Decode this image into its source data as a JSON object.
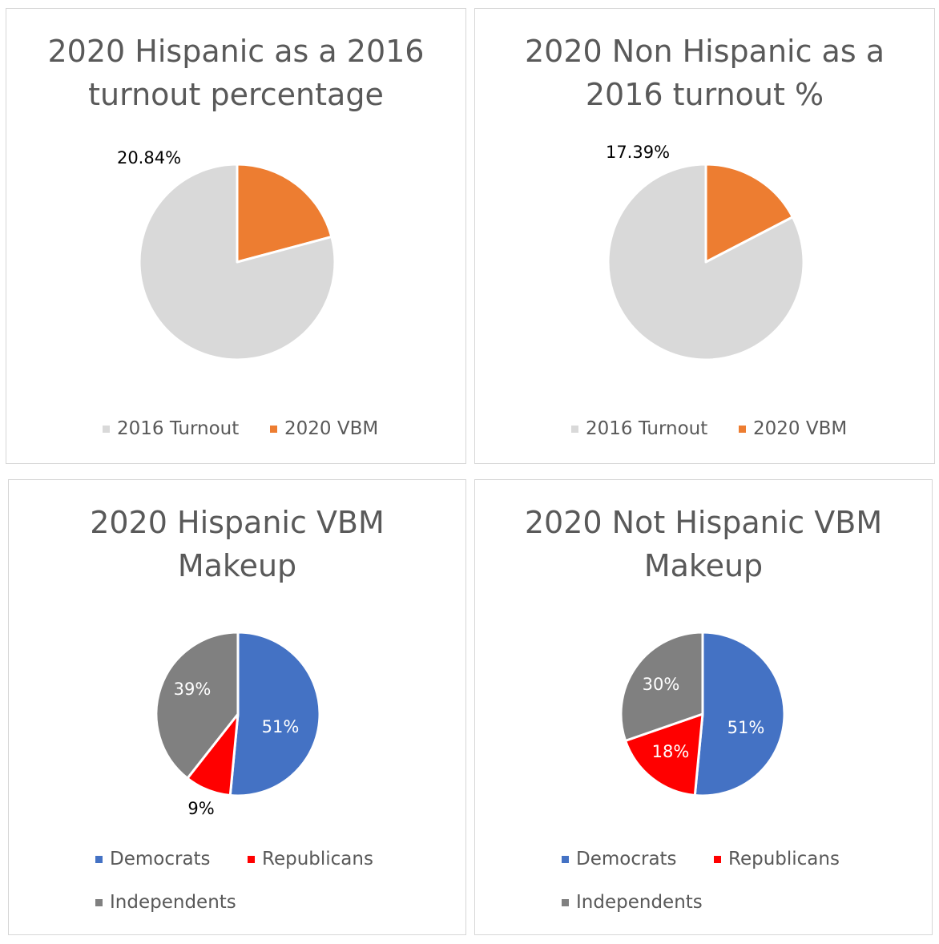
{
  "chart_data": [
    {
      "type": "pie",
      "title": [
        "2020 Hispanic as a 2016",
        "turnout percentage"
      ],
      "labels": [
        "2016 Turnout",
        "2020 VBM"
      ],
      "values": [
        79.16,
        20.84
      ],
      "colors": [
        "#d9d9d9",
        "#ed7d31"
      ],
      "data_labels": [
        "",
        "20.84%"
      ],
      "legend_position": "bottom"
    },
    {
      "type": "pie",
      "title": [
        "2020 Non Hispanic as a",
        "2016 turnout %"
      ],
      "labels": [
        "2016 Turnout",
        "2020 VBM"
      ],
      "values": [
        82.61,
        17.39
      ],
      "colors": [
        "#d9d9d9",
        "#ed7d31"
      ],
      "data_labels": [
        "",
        "17.39%"
      ],
      "legend_position": "bottom"
    },
    {
      "type": "pie",
      "title": [
        "2020 Hispanic VBM",
        "Makeup"
      ],
      "labels": [
        "Democrats",
        "Republicans",
        "Independents"
      ],
      "values": [
        51,
        9,
        39
      ],
      "colors": [
        "#4472c4",
        "#ff0000",
        "#808080"
      ],
      "data_labels": [
        "51%",
        "9%",
        "39%"
      ],
      "legend_position": "bottom"
    },
    {
      "type": "pie",
      "title": [
        "2020 Not Hispanic VBM",
        "Makeup"
      ],
      "labels": [
        "Democrats",
        "Republicans",
        "Independents"
      ],
      "values": [
        51,
        18,
        30
      ],
      "colors": [
        "#4472c4",
        "#ff0000",
        "#808080"
      ],
      "data_labels": [
        "51%",
        "18%",
        "30%"
      ],
      "legend_position": "bottom"
    }
  ]
}
